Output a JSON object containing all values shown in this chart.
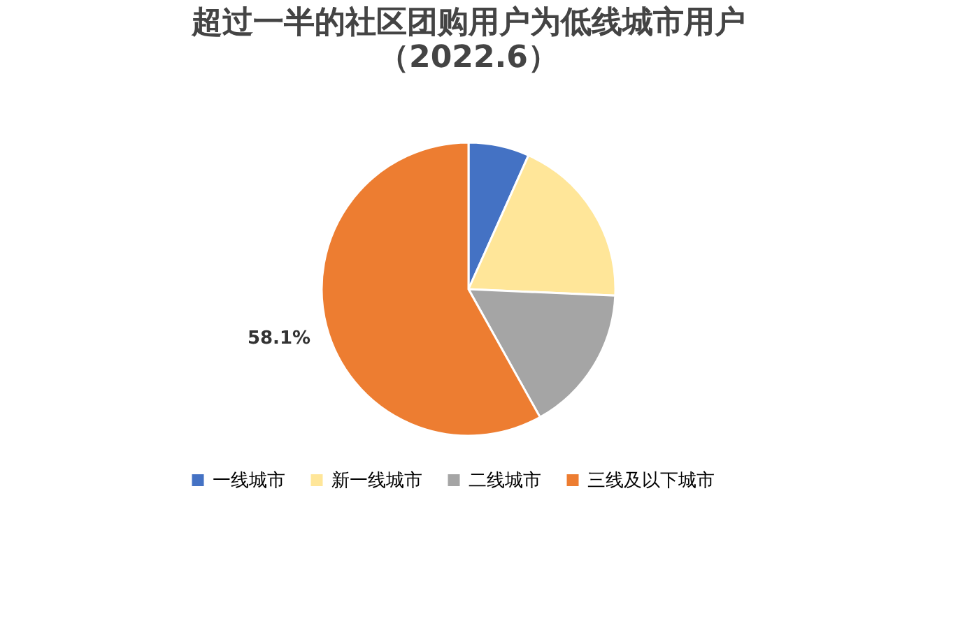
{
  "chart_data": {
    "type": "pie",
    "title": "超过一半的社区团购用户为低线城市用户",
    "subtitle": "（2022.6）",
    "categories": [
      "一线城市",
      "新一线城市",
      "二线城市",
      "三线及以下城市"
    ],
    "values": [
      6.7,
      19.0,
      16.2,
      58.1
    ],
    "colors": [
      "#4472c4",
      "#ffe699",
      "#a5a5a5",
      "#ed7d31"
    ],
    "value_labels": [
      null,
      null,
      null,
      "58.1%"
    ],
    "legend": "bottom"
  }
}
